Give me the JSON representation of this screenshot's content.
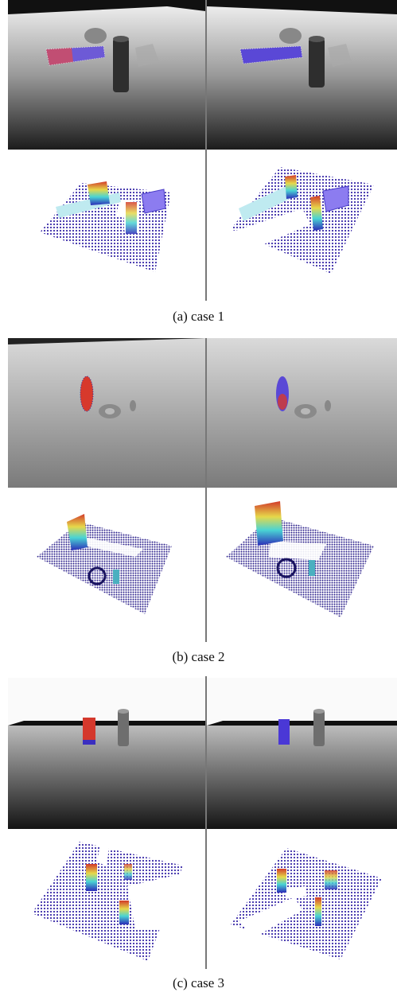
{
  "figure": {
    "subfigures": [
      {
        "caption": "(a) case 1"
      },
      {
        "caption": "(b) case 2"
      },
      {
        "caption": "(c) case 3"
      }
    ]
  }
}
